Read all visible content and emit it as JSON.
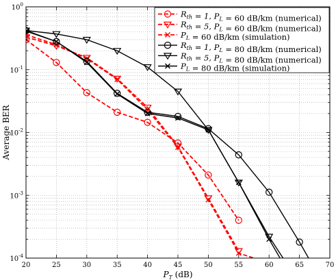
{
  "chart_data": {
    "type": "line",
    "xlabel": "P_T (dB)",
    "xlabel_parts": {
      "main": "P",
      "sub": "T",
      "rest": " (dB)"
    },
    "ylabel": "Average BER",
    "xlim": [
      20,
      70
    ],
    "ylim": [
      0.0001,
      1
    ],
    "yscale": "log",
    "grid": true,
    "legend_position": "top-right",
    "x_ticks": [
      "20",
      "25",
      "30",
      "35",
      "40",
      "45",
      "50",
      "55",
      "60",
      "65",
      "70"
    ],
    "y_ticks": [
      {
        "base": "10",
        "exp": "0",
        "value": 1
      },
      {
        "base": "10",
        "exp": "-1",
        "value": 0.1
      },
      {
        "base": "10",
        "exp": "-2",
        "value": 0.01
      },
      {
        "base": "10",
        "exp": "-3",
        "value": 0.001
      },
      {
        "base": "10",
        "exp": "-4",
        "value": 0.0001
      }
    ],
    "series": [
      {
        "name": "R_th = 1, P_L = 60 dB/km (numerical)",
        "legend_parts": [
          {
            "t": "R",
            "s": "th"
          },
          {
            "t": " = 1, P"
          },
          {
            "t": "",
            "s": "L"
          },
          {
            "t": " = 60 dB/km (numerical)"
          }
        ],
        "color": "#ff0000",
        "dash": "dashed",
        "marker": "circle",
        "x": [
          20,
          25,
          30,
          35,
          40,
          45,
          50,
          55
        ],
        "y": [
          0.3,
          0.13,
          0.043,
          0.021,
          0.0145,
          0.0068,
          0.0021,
          0.0004
        ]
      },
      {
        "name": "R_th = 5, P_L = 60 dB/km (numerical)",
        "legend_parts": [
          {
            "t": "R",
            "s": "th"
          },
          {
            "t": " = 5, P"
          },
          {
            "t": "",
            "s": "L"
          },
          {
            "t": " = 60 dB/km (numerical)"
          }
        ],
        "color": "#ff0000",
        "dash": "dashed",
        "marker": "triangle-down",
        "x": [
          20,
          25,
          30,
          35,
          40,
          45,
          50,
          55
        ],
        "y": [
          0.33,
          0.24,
          0.155,
          0.072,
          0.025,
          0.006,
          0.0009,
          0.00013
        ]
      },
      {
        "name": "P_L = 60 dB/km (simulation)",
        "legend_parts": [
          {
            "t": "P"
          },
          {
            "t": "",
            "s": "L"
          },
          {
            "t": " = 60 dB/km (simulation)"
          }
        ],
        "color": "#ff0000",
        "dash": "dashed",
        "marker": "x",
        "x": [
          20,
          25,
          30,
          35,
          40,
          45,
          50,
          55,
          57.5
        ],
        "y": [
          0.36,
          0.25,
          0.15,
          0.07,
          0.023,
          0.0058,
          0.00085,
          0.00012,
          0.0001
        ]
      },
      {
        "name": "R_th = 1, P_L = 80 dB/km (numerical)",
        "legend_parts": [
          {
            "t": "R",
            "s": "th"
          },
          {
            "t": " = 1, P"
          },
          {
            "t": "",
            "s": "L"
          },
          {
            "t": " = 80 dB/km (numerical)"
          }
        ],
        "color": "#000000",
        "dash": "solid",
        "marker": "circle",
        "x": [
          20,
          25,
          30,
          35,
          40,
          45,
          50,
          55,
          60,
          65,
          66.5
        ],
        "y": [
          0.42,
          0.28,
          0.135,
          0.042,
          0.021,
          0.018,
          0.0115,
          0.0044,
          0.00112,
          0.00018,
          0.0001
        ]
      },
      {
        "name": "R_th = 5, P_L = 80 dB/km (numerical)",
        "legend_parts": [
          {
            "t": "R",
            "s": "th"
          },
          {
            "t": " = 5, P"
          },
          {
            "t": "",
            "s": "L"
          },
          {
            "t": " = 80 dB/km (numerical)"
          }
        ],
        "color": "#000000",
        "dash": "solid",
        "marker": "triangle-down",
        "x": [
          20,
          25,
          30,
          35,
          40,
          45,
          50,
          55,
          60,
          62.3
        ],
        "y": [
          0.42,
          0.37,
          0.3,
          0.2,
          0.11,
          0.045,
          0.011,
          0.0016,
          0.00022,
          0.0001
        ]
      },
      {
        "name": "P_L = 80 dB/km (simulation)",
        "legend_parts": [
          {
            "t": "P"
          },
          {
            "t": "",
            "s": "L"
          },
          {
            "t": " = 80 dB/km (simulation)"
          }
        ],
        "color": "#000000",
        "dash": "solid",
        "marker": "x",
        "x": [
          20,
          25,
          30,
          35,
          40,
          45,
          50,
          55,
          60,
          61.8
        ],
        "y": [
          0.41,
          0.28,
          0.13,
          0.041,
          0.02,
          0.017,
          0.011,
          0.0016,
          0.0002,
          0.0001
        ]
      }
    ]
  }
}
